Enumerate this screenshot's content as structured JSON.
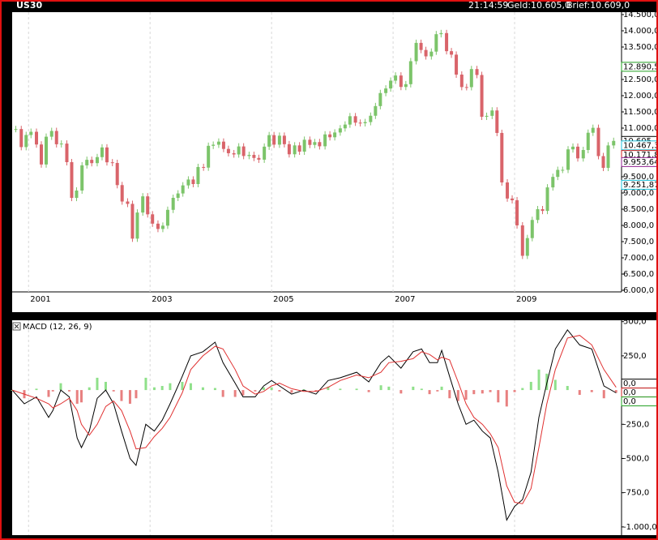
{
  "header": {
    "symbol": "US30",
    "time": "21:14:59",
    "bid": "Geld:10.605,0",
    "ask": "Brief:10.609,0"
  },
  "chart_data": [
    {
      "type": "candlestick",
      "grid": true,
      "up_color": "#7cc46a",
      "down_color": "#d9646a",
      "xlim": [
        2000.73,
        2010.76
      ],
      "xticks": [
        2001,
        2003,
        2005,
        2007,
        2009
      ],
      "ylim": [
        5950,
        14575
      ],
      "yticks": [
        {
          "value": 14500,
          "label": "14.500,0"
        },
        {
          "value": 14000,
          "label": "14.000,0"
        },
        {
          "value": 13500,
          "label": "13.500,0"
        },
        {
          "value": 12500,
          "label": "12.500,0"
        },
        {
          "value": 12000,
          "label": "12.000,0"
        },
        {
          "value": 11500,
          "label": "11.500,0"
        },
        {
          "value": 11000,
          "label": "11.000,0"
        },
        {
          "value": 9500,
          "label": "9.500,0"
        },
        {
          "value": 9000,
          "label": "9.000,0"
        },
        {
          "value": 8500,
          "label": "8.500,0"
        },
        {
          "value": 8000,
          "label": "8.000,0"
        },
        {
          "value": 7500,
          "label": "7.500,0"
        },
        {
          "value": 7000,
          "label": "7.000,0"
        },
        {
          "value": 6500,
          "label": "6.500,0"
        },
        {
          "value": 6000,
          "label": "6.000,0"
        }
      ],
      "markers": [
        {
          "value": 12890.5,
          "label": "12.890,5",
          "color": "#22a022"
        },
        {
          "value": 10605,
          "label": "10.605",
          "color": "#000000"
        },
        {
          "value": 10467.3,
          "label": "10.467,3",
          "color": "#20c0d8"
        },
        {
          "value": 10171.8,
          "label": "10.171,8",
          "color": "#d02020"
        },
        {
          "value": 9953.64,
          "label": "9.953,64",
          "color": "#902090"
        },
        {
          "value": 9251.87,
          "label": "9.251,87",
          "color": "#20c0d8"
        }
      ],
      "x": [
        2000.79,
        2000.88,
        2000.96,
        2001.04,
        2001.13,
        2001.21,
        2001.29,
        2001.38,
        2001.46,
        2001.54,
        2001.63,
        2001.71,
        2001.79,
        2001.88,
        2001.96,
        2002.04,
        2002.13,
        2002.21,
        2002.29,
        2002.38,
        2002.46,
        2002.54,
        2002.63,
        2002.71,
        2002.79,
        2002.88,
        2002.96,
        2003.04,
        2003.13,
        2003.21,
        2003.29,
        2003.38,
        2003.46,
        2003.54,
        2003.63,
        2003.71,
        2003.79,
        2003.88,
        2003.96,
        2004.04,
        2004.13,
        2004.21,
        2004.29,
        2004.38,
        2004.46,
        2004.54,
        2004.63,
        2004.71,
        2004.79,
        2004.88,
        2004.96,
        2005.04,
        2005.13,
        2005.21,
        2005.29,
        2005.38,
        2005.46,
        2005.54,
        2005.63,
        2005.71,
        2005.79,
        2005.88,
        2005.96,
        2006.04,
        2006.13,
        2006.21,
        2006.29,
        2006.38,
        2006.46,
        2006.54,
        2006.63,
        2006.71,
        2006.79,
        2006.88,
        2006.96,
        2007.04,
        2007.13,
        2007.21,
        2007.29,
        2007.38,
        2007.46,
        2007.54,
        2007.63,
        2007.71,
        2007.79,
        2007.88,
        2007.96,
        2008.04,
        2008.13,
        2008.21,
        2008.29,
        2008.38,
        2008.46,
        2008.54,
        2008.63,
        2008.71,
        2008.79,
        2008.88,
        2008.96,
        2009.04,
        2009.13,
        2009.21,
        2009.29,
        2009.38,
        2009.46,
        2009.54,
        2009.63,
        2009.71,
        2009.79,
        2009.88,
        2009.96,
        2010.04,
        2010.13,
        2010.21,
        2010.29,
        2010.38,
        2010.46,
        2010.54,
        2010.63
      ],
      "values": [
        10971,
        10415,
        10788,
        10887,
        10495,
        9879,
        10735,
        10912,
        10502,
        10523,
        9950,
        8848,
        9075,
        9852,
        10022,
        9920,
        10106,
        10404,
        9946,
        9925,
        9243,
        8737,
        8664,
        7592,
        8397,
        8896,
        8342,
        8054,
        7891,
        7992,
        8480,
        8850,
        8985,
        9234,
        9415,
        9275,
        9801,
        9782,
        10454,
        10488,
        10583,
        10358,
        10226,
        10188,
        10435,
        10140,
        10174,
        10080,
        10027,
        10428,
        10783,
        10490,
        10766,
        10504,
        10193,
        10467,
        10275,
        10641,
        10482,
        10569,
        10440,
        10806,
        10718,
        10865,
        10993,
        11109,
        11367,
        11168,
        11150,
        11186,
        11381,
        11679,
        12081,
        12222,
        12463,
        12622,
        12269,
        12354,
        13063,
        13628,
        13409,
        13212,
        13358,
        13896,
        13930,
        13372,
        13265,
        12650,
        12266,
        12263,
        12820,
        12638,
        11350,
        11378,
        11544,
        10851,
        9325,
        8829,
        8776,
        8001,
        7063,
        7609,
        8168,
        8500,
        8447,
        9172,
        9496,
        9712,
        9713,
        10345,
        10428,
        10067,
        10325,
        10857,
        11009,
        10137,
        9774,
        10466,
        10605
      ]
    },
    {
      "type": "line",
      "title": "MACD (12, 26, 9)",
      "grid": true,
      "xlim": [
        2000.73,
        2010.76
      ],
      "xticks": [
        2001,
        2003,
        2005,
        2007,
        2009
      ],
      "ylim": [
        -1060,
        510
      ],
      "yticks": [
        {
          "value": 500,
          "label": "500,0"
        },
        {
          "value": 250,
          "label": "250,0"
        },
        {
          "value": -250,
          "label": "-250,0"
        },
        {
          "value": -500,
          "label": "-500,0"
        },
        {
          "value": -750,
          "label": "-750,0"
        },
        {
          "value": -1000,
          "label": "-1.000,0"
        }
      ],
      "markers": [
        {
          "value": 0,
          "label": "0,0",
          "color": "#000000"
        },
        {
          "value": 0,
          "label": "0,0",
          "color": "#d02020"
        },
        {
          "value": 0,
          "label": "0,0",
          "color": "#22a022"
        }
      ],
      "x": [
        2000.73,
        2000.93,
        2001.13,
        2001.33,
        2001.4,
        2001.53,
        2001.67,
        2001.8,
        2001.87,
        2002.0,
        2002.13,
        2002.27,
        2002.4,
        2002.53,
        2002.67,
        2002.77,
        2002.93,
        2003.07,
        2003.2,
        2003.33,
        2003.53,
        2003.67,
        2003.87,
        2004.07,
        2004.2,
        2004.4,
        2004.53,
        2004.73,
        2004.87,
        2005.0,
        2005.13,
        2005.33,
        2005.53,
        2005.73,
        2005.93,
        2006.13,
        2006.4,
        2006.6,
        2006.8,
        2006.93,
        2007.13,
        2007.33,
        2007.47,
        2007.6,
        2007.73,
        2007.8,
        2007.93,
        2008.07,
        2008.2,
        2008.33,
        2008.47,
        2008.6,
        2008.73,
        2008.87,
        2009.0,
        2009.13,
        2009.27,
        2009.4,
        2009.53,
        2009.67,
        2009.87,
        2010.07,
        2010.27,
        2010.47,
        2010.67
      ],
      "series": [
        {
          "type": "bar",
          "pos_color": "#8fe08a",
          "neg_color": "#e88080",
          "values": [
            0,
            -60,
            10,
            -50,
            -10,
            50,
            -10,
            -100,
            -90,
            20,
            90,
            60,
            -10,
            -80,
            -100,
            -60,
            90,
            20,
            30,
            50,
            60,
            50,
            20,
            15,
            -50,
            -50,
            -40,
            -10,
            20,
            20,
            -10,
            -20,
            5,
            -10,
            25,
            10,
            10,
            -15,
            35,
            25,
            -25,
            25,
            10,
            -30,
            -10,
            25,
            -60,
            -80,
            -70,
            -30,
            -25,
            -15,
            -90,
            -120,
            -15,
            15,
            60,
            150,
            120,
            75,
            30,
            -35,
            -15,
            -60,
            -20
          ]
        },
        {
          "type": "line",
          "color": "#000000",
          "values": [
            0,
            -100,
            -50,
            -200,
            -150,
            0,
            -50,
            -350,
            -420,
            -300,
            -60,
            0,
            -100,
            -300,
            -500,
            -550,
            -250,
            -300,
            -220,
            -100,
            100,
            250,
            280,
            350,
            200,
            50,
            -50,
            -50,
            30,
            70,
            30,
            -30,
            0,
            -30,
            70,
            90,
            130,
            60,
            200,
            250,
            160,
            280,
            300,
            200,
            200,
            290,
            100,
            -100,
            -250,
            -220,
            -300,
            -350,
            -600,
            -950,
            -850,
            -800,
            -600,
            -200,
            50,
            300,
            440,
            330,
            300,
            30,
            -20
          ]
        },
        {
          "type": "line",
          "color": "#e03030",
          "values": [
            0,
            -30,
            -60,
            -100,
            -130,
            -100,
            -60,
            -150,
            -250,
            -330,
            -250,
            -120,
            -80,
            -150,
            -300,
            -430,
            -420,
            -340,
            -280,
            -200,
            -20,
            150,
            250,
            320,
            300,
            150,
            30,
            -30,
            -10,
            30,
            50,
            10,
            -10,
            -10,
            20,
            70,
            110,
            90,
            130,
            200,
            210,
            230,
            280,
            260,
            220,
            240,
            220,
            60,
            -100,
            -200,
            -250,
            -320,
            -420,
            -700,
            -820,
            -830,
            -720,
            -420,
            -100,
            150,
            380,
            400,
            330,
            150,
            20
          ]
        }
      ]
    }
  ]
}
